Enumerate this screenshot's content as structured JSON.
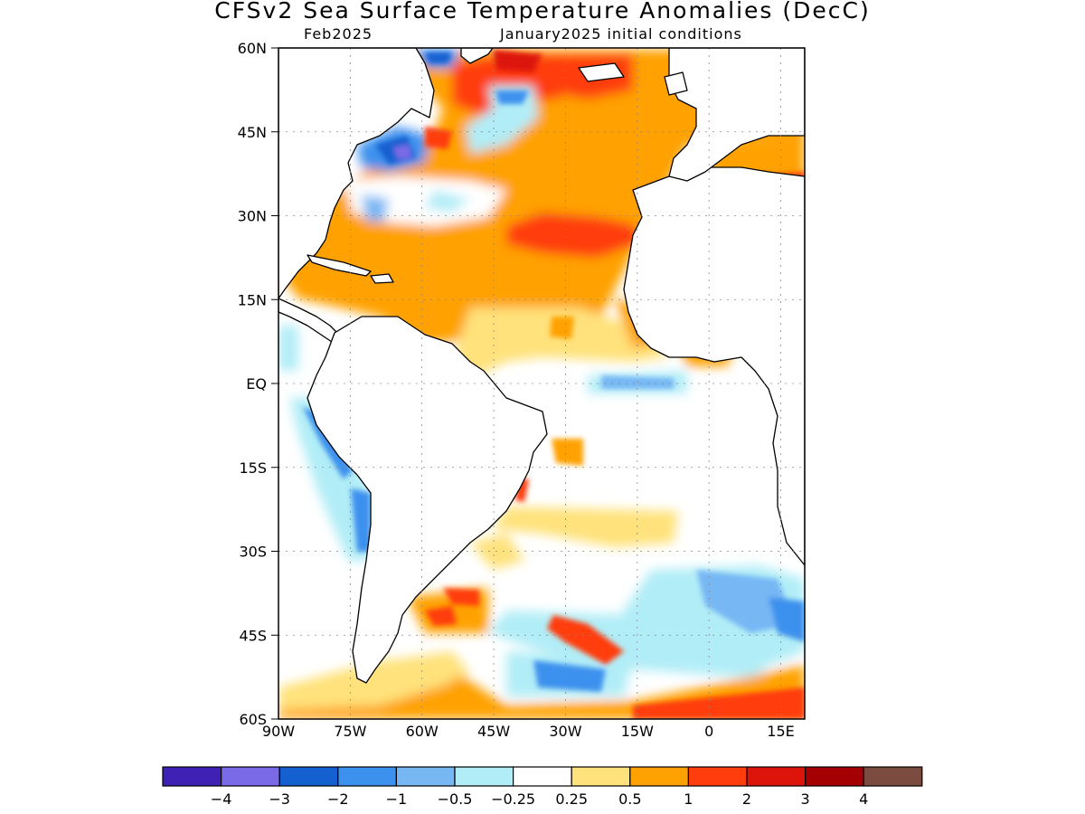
{
  "title": "CFSv2 Sea Surface Temperature Anomalies (DecC)",
  "subtitle_left": "Feb2025",
  "subtitle_right": "January2025 initial conditions",
  "map": {
    "lon_range": [
      -90,
      20
    ],
    "lat_range": [
      -60,
      60
    ],
    "lon_ticks": [
      {
        "value": -90,
        "label": "90W"
      },
      {
        "value": -75,
        "label": "75W"
      },
      {
        "value": -60,
        "label": "60W"
      },
      {
        "value": -45,
        "label": "45W"
      },
      {
        "value": -30,
        "label": "30W"
      },
      {
        "value": -15,
        "label": "15W"
      },
      {
        "value": 0,
        "label": "0"
      },
      {
        "value": 15,
        "label": "15E"
      }
    ],
    "lat_ticks": [
      {
        "value": 60,
        "label": "60N"
      },
      {
        "value": 45,
        "label": "45N"
      },
      {
        "value": 30,
        "label": "30N"
      },
      {
        "value": 15,
        "label": "15N"
      },
      {
        "value": 0,
        "label": "EQ"
      },
      {
        "value": -15,
        "label": "15S"
      },
      {
        "value": -30,
        "label": "30S"
      },
      {
        "value": -45,
        "label": "45S"
      },
      {
        "value": -60,
        "label": "60S"
      }
    ],
    "grid": "dotted",
    "coastline_color": "#000000"
  },
  "colorbar": {
    "colors": [
      "#3f22b5",
      "#7b6ae8",
      "#1560d0",
      "#3d91ee",
      "#77b7f4",
      "#b1edf7",
      "#ffffff",
      "#ffe27c",
      "#ffa100",
      "#ff3d0d",
      "#dd1409",
      "#a40003",
      "#7a4b3e"
    ],
    "labels": [
      "−4",
      "−3",
      "−2",
      "−1",
      "−0.5",
      "−0.25",
      "0.25",
      "0.5",
      "1",
      "2",
      "3",
      "4"
    ]
  },
  "anomalies": [
    {
      "lon": -60,
      "lat": 40,
      "level": "-3",
      "color": "#7b6ae8"
    },
    {
      "lon": -46,
      "lat": 52,
      "level": "-1",
      "color": "#3d91ee"
    },
    {
      "lon": -70,
      "lat": 30,
      "level": "-0.5",
      "color": "#77b7f4"
    },
    {
      "lon": -40,
      "lat": 57,
      "level": "2",
      "color": "#ff3d0d"
    },
    {
      "lon": -25,
      "lat": 27,
      "level": "2",
      "color": "#ff3d0d"
    },
    {
      "lon": -40,
      "lat": 25,
      "level": "1",
      "color": "#ffa100"
    },
    {
      "lon": -70,
      "lat": 13,
      "level": "1",
      "color": "#ffa100"
    },
    {
      "lon": -12,
      "lat": 0,
      "level": "-0.5",
      "color": "#77b7f4"
    },
    {
      "lon": -79,
      "lat": -12,
      "level": "-1",
      "color": "#3d91ee"
    },
    {
      "lon": -27,
      "lat": -12,
      "level": "1",
      "color": "#ffa100"
    },
    {
      "lon": -28,
      "lat": -25,
      "level": "0.5",
      "color": "#ffe27c"
    },
    {
      "lon": -25,
      "lat": -44,
      "level": "2",
      "color": "#ff3d0d"
    },
    {
      "lon": 8,
      "lat": -40,
      "level": "-1",
      "color": "#3d91ee"
    },
    {
      "lon": -30,
      "lat": -52,
      "level": "-1",
      "color": "#3d91ee"
    },
    {
      "lon": -55,
      "lat": -41,
      "level": "2",
      "color": "#ff3d0d"
    },
    {
      "lon": 0,
      "lat": -57,
      "level": "1",
      "color": "#ffa100"
    },
    {
      "lon": 12,
      "lat": -59,
      "level": "2",
      "color": "#ff3d0d"
    }
  ]
}
